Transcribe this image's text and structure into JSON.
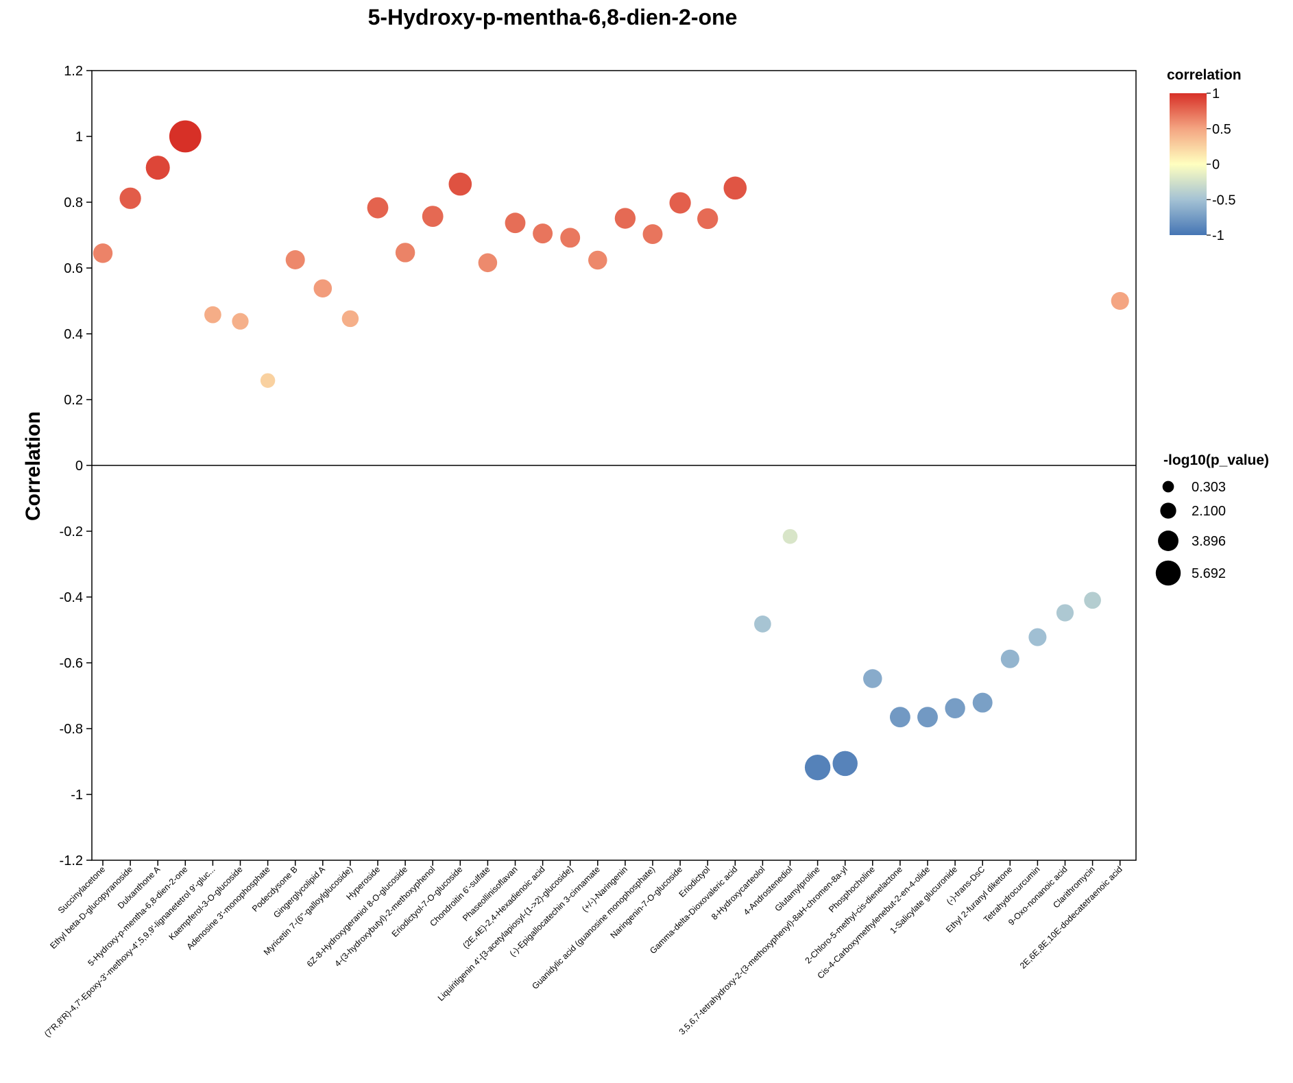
{
  "chart_data": {
    "type": "scatter",
    "title": "5-Hydroxy-p-mentha-6,8-dien-2-one",
    "xlabel": "",
    "ylabel": "Correlation",
    "ylim": [
      -1.2,
      1.2
    ],
    "yticks": [
      1.2,
      1,
      0.8,
      0.6,
      0.4,
      0.2,
      0,
      -0.2,
      -0.4,
      -0.6,
      -0.8,
      -1,
      -1.2
    ],
    "ytick_labels": [
      "1.2",
      "1",
      "0.8",
      "0.6",
      "0.4",
      "0.2",
      "0",
      "-0.2",
      "-0.4",
      "-0.6",
      "-0.8",
      "-1",
      "-1.2"
    ],
    "categories": [
      "Succinylacetone",
      "Ethyl beta-D-glucopyranoside",
      "Dulxanthone A",
      "5-Hydroxy-p-mentha-6,8-dien-2-one",
      "(7'R,8'R)-4,7'-Epoxy-3'-methoxy-4',5,9,9'-lignanetetrol 9'-gluc...",
      "Kaempferol-3-O-glucoside",
      "Adenosine 3'-monophosphate",
      "Podecdysone B",
      "Gingerglycolipid A",
      "Myricetin 7-(6''-galloylglucoside)",
      "Hyperoside",
      "6Z-8-Hydroxygeraniol 8-O-glucoside",
      "4-(3-hydroxybutyl)-2-methoxyphenol",
      "Eriodictyol-7-O-glucoside",
      "Chondroitin 6'-sulfate",
      "Phaseollinisoflavan",
      "(2E,4E)-2,4-Hexadienoic acid",
      "Liquiritigenin 4'-[3-acetylapiosyl-(1->2)-glucoside]",
      "(-)-Epigallocatechin 3-cinnamate",
      "(+/-)-Naringenin",
      "Guanidylic acid (guanosine monophosphate)",
      "Naringenin-7-O-glucoside",
      "Eriodictyol",
      "Gamma-delta-Dioxovaleric acid",
      "8-Hydroxycarteolol",
      "4-Androstenediol",
      "Glutamylproline",
      "3,5,6,7-tetrahydroxy-2-(3-methoxyphenyl)-8aH-chromen-8a-yl",
      "Phosphocholine",
      "2-Chloro-5-methyl-cis-dienelactone",
      "Cis-4-Carboxymethylenebut-2-en-4-olide",
      "1-Salicylate glucuronide",
      "(-)-trans-DsC",
      "Ethyl 2-furanyl diketone",
      "Tetrahydrocurcumin",
      "9-Oxo-nonanoic acid",
      "Clarithromycin",
      "2E,6E,8E,10E-dodecatetraenoic acid"
    ],
    "values": [
      0.645,
      0.812,
      0.905,
      1.0,
      0.458,
      0.438,
      0.258,
      0.625,
      0.538,
      0.446,
      0.783,
      0.647,
      0.757,
      0.855,
      0.616,
      0.737,
      0.705,
      0.692,
      0.624,
      0.751,
      0.703,
      0.798,
      0.75,
      0.843,
      -0.482,
      -0.216,
      -0.918,
      -0.906,
      -0.648,
      -0.765,
      -0.765,
      -0.738,
      -0.721,
      -0.588,
      -0.522,
      -0.448,
      -0.41,
      0.5
    ],
    "neg_log10_p": [
      1.8,
      2.4,
      3.2,
      5.692,
      1.0,
      0.9,
      0.303,
      1.7,
      1.4,
      0.95,
      2.3,
      1.8,
      2.3,
      2.9,
      1.6,
      2.1,
      1.9,
      1.9,
      1.6,
      2.2,
      1.9,
      2.4,
      2.2,
      2.9,
      1.0,
      0.35,
      3.7,
      3.5,
      1.6,
      2.1,
      2.1,
      2.0,
      1.9,
      1.5,
      1.3,
      1.1,
      1.0,
      1.3
    ],
    "color_legend": {
      "title": "correlation",
      "ticks": [
        "1",
        "0.5",
        "0",
        "-0.5",
        "-1"
      ],
      "stops": [
        "#d73027",
        "#f4a582",
        "#ffffbf",
        "#a4c2d4",
        "#4575b4"
      ]
    },
    "size_legend": {
      "title": "-log10(p_value)",
      "labels": [
        "0.303",
        "2.100",
        "3.896",
        "5.692"
      ]
    }
  }
}
